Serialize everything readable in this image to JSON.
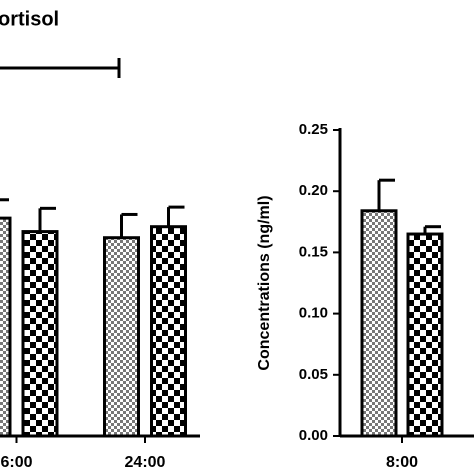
{
  "chart_data": [
    {
      "type": "bar",
      "title": "ortisol",
      "categories": [
        "6:00",
        "24:00"
      ],
      "series": [
        {
          "color": "#777777",
          "pattern": "fine",
          "values": [
            0.178,
            0.162
          ],
          "errors": [
            0.015,
            0.019
          ]
        },
        {
          "color": "#000000",
          "pattern": "coarse",
          "values": [
            0.167,
            0.171
          ],
          "errors": [
            0.019,
            0.016
          ]
        }
      ],
      "ylim": [
        0,
        0.25
      ]
    },
    {
      "type": "bar",
      "ylabel": "Concentrations (ng/ml)",
      "categories": [
        "8:00"
      ],
      "series": [
        {
          "color": "#777777",
          "pattern": "fine",
          "values": [
            0.184
          ],
          "errors": [
            0.025
          ]
        },
        {
          "color": "#000000",
          "pattern": "coarse",
          "values": [
            0.165
          ],
          "errors": [
            0.006
          ]
        }
      ],
      "ylim": [
        0,
        0.25
      ],
      "yticks": [
        {
          "value": 0,
          "label": "0.00"
        },
        {
          "value": 0.05,
          "label": "0.05"
        },
        {
          "value": 0.1,
          "label": "0.10"
        },
        {
          "value": 0.15,
          "label": "0.15"
        },
        {
          "value": 0.2,
          "label": "0.20"
        },
        {
          "value": 0.25,
          "label": "0.25"
        }
      ]
    }
  ]
}
